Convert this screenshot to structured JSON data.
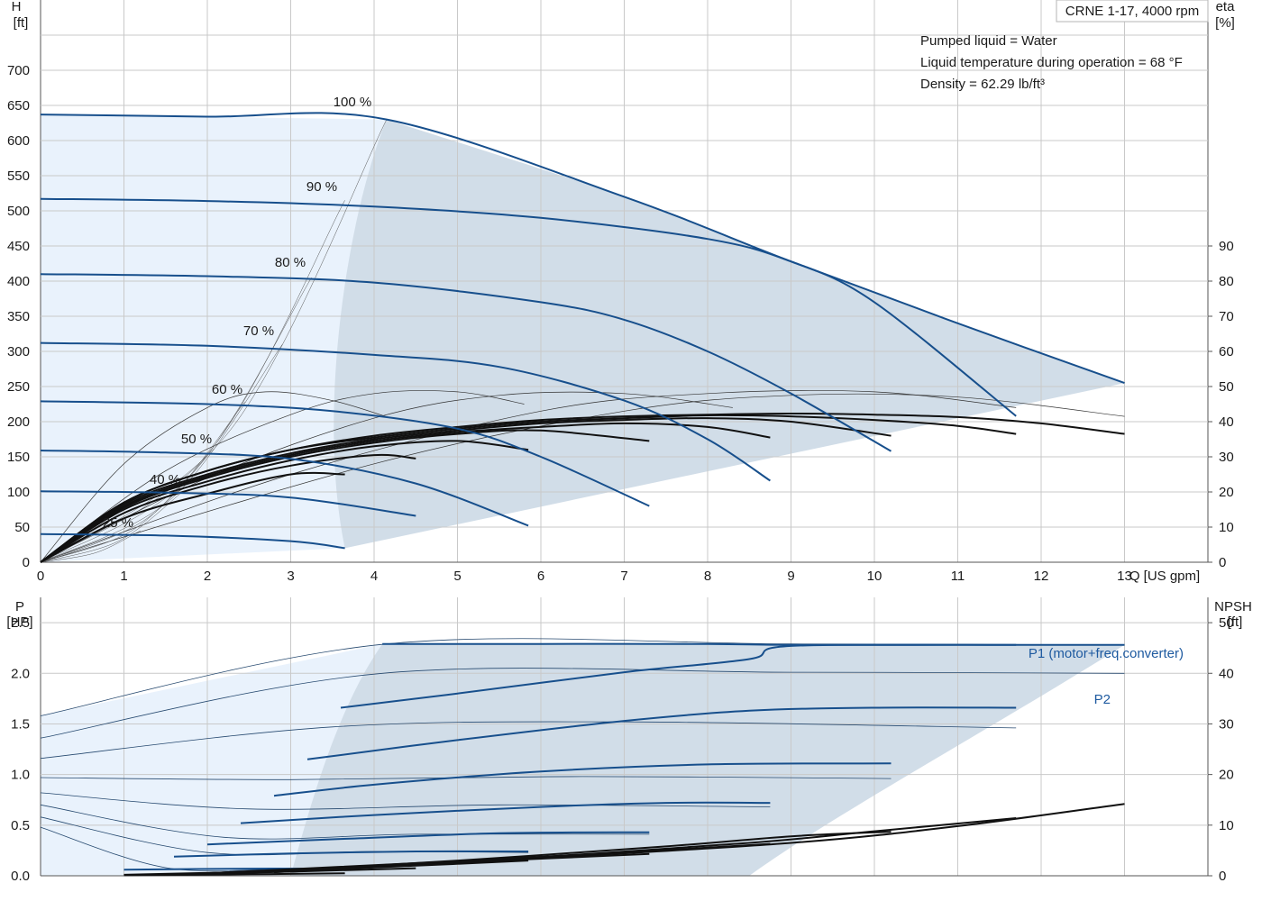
{
  "colors": {
    "curve": "#174f8c",
    "area_light": "#e9f2fc",
    "area_dark": "#d1dde8",
    "grid": "#c9c9c9",
    "black": "#111111",
    "label_blue": "#1e5aa0"
  },
  "info": {
    "pump": "CRNE 1-17, 4000 rpm",
    "liquid": "Pumped liquid = Water",
    "temperature": "Liquid temperature during operation = 68 °F",
    "density": "Density = 62.29 lb/ft³"
  },
  "chart_data": [
    {
      "type": "line",
      "name": "head-efficiency",
      "xlabel": "Q [US gpm]",
      "ylabel_left": [
        "H",
        "[ft]"
      ],
      "ylabel_right": [
        "eta",
        "[%]"
      ],
      "xlim": [
        0,
        14
      ],
      "ylim_left": [
        0,
        800
      ],
      "ylim_right": [
        0,
        160
      ],
      "xticks": [
        0,
        1,
        2,
        3,
        4,
        5,
        6,
        7,
        8,
        9,
        10,
        11,
        12,
        13
      ],
      "yticks_left": [
        0,
        50,
        100,
        150,
        200,
        250,
        300,
        350,
        400,
        450,
        500,
        550,
        600,
        650,
        700
      ],
      "yticks_right": [
        0,
        10,
        20,
        30,
        40,
        50,
        60,
        70,
        80,
        90
      ],
      "grid": true,
      "speed_labels": [
        "100 %",
        "90 %",
        "80 %",
        "70 %",
        "60 %",
        "50 %",
        "40 %",
        "25 %"
      ],
      "head_curves": [
        {
          "speed": "100 %",
          "x": [
            0,
            2,
            4.15,
            7,
            9,
            11,
            13
          ],
          "y": [
            637,
            634,
            630,
            520,
            428,
            340,
            255
          ]
        },
        {
          "speed": "90 %",
          "x": [
            0,
            2,
            4,
            6,
            8,
            9,
            10,
            11.7
          ],
          "y": [
            517,
            514,
            506,
            490,
            460,
            428,
            370,
            208
          ]
        },
        {
          "speed": "80 %",
          "x": [
            0,
            2,
            4,
            6,
            7,
            8,
            9,
            10.2
          ],
          "y": [
            410,
            407,
            398,
            370,
            345,
            300,
            240,
            158
          ]
        },
        {
          "speed": "70 %",
          "x": [
            0,
            2,
            4,
            5.5,
            7,
            8,
            8.75
          ],
          "y": [
            312,
            308,
            295,
            278,
            230,
            175,
            116
          ]
        },
        {
          "speed": "60 %",
          "x": [
            0,
            2,
            3.5,
            5,
            6,
            7.3
          ],
          "y": [
            229,
            225,
            215,
            190,
            150,
            80
          ]
        },
        {
          "speed": "50 %",
          "x": [
            0,
            1.5,
            3,
            4.5,
            5.85
          ],
          "y": [
            159,
            156,
            147,
            112,
            52
          ]
        },
        {
          "speed": "40 %",
          "x": [
            0,
            1.5,
            3,
            4.5
          ],
          "y": [
            101,
            99,
            92,
            66
          ]
        },
        {
          "speed": "25 %",
          "x": [
            0,
            1.5,
            3,
            3.65
          ],
          "y": [
            40,
            38,
            30,
            20
          ]
        }
      ],
      "efficiency_curves": [
        {
          "speed": "100 %",
          "x": [
            0,
            1,
            2,
            3,
            4,
            5,
            6,
            7,
            8,
            9,
            10,
            11,
            12,
            13
          ],
          "y": [
            0,
            17,
            26,
            32,
            36,
            38.5,
            40.5,
            41.5,
            42,
            42.3,
            42,
            41.3,
            39.5,
            36.5
          ]
        },
        {
          "speed": "90 %",
          "x": [
            0,
            1,
            2,
            3,
            4,
            5,
            6,
            7,
            8,
            9,
            10,
            11,
            11.7
          ],
          "y": [
            0,
            17,
            26,
            32,
            35.5,
            38,
            40,
            41,
            41.8,
            41.5,
            40.5,
            38.8,
            36.5
          ]
        },
        {
          "speed": "80 %",
          "x": [
            0,
            1,
            2,
            3,
            4,
            5,
            6,
            7,
            8,
            9,
            10.2
          ],
          "y": [
            0,
            16.5,
            25,
            31,
            35,
            37.5,
            39.5,
            40.5,
            41,
            40,
            36
          ]
        },
        {
          "speed": "70 %",
          "x": [
            0,
            1,
            2,
            3,
            4,
            5,
            6,
            7,
            8,
            8.75
          ],
          "y": [
            0,
            16,
            24.5,
            30.5,
            34.5,
            37,
            38.5,
            39.5,
            38.5,
            35.5
          ]
        },
        {
          "speed": "60 %",
          "x": [
            0,
            1,
            2,
            3,
            4,
            5,
            6,
            7.3
          ],
          "y": [
            0,
            15.5,
            24,
            30,
            34,
            36.5,
            37.5,
            34.5
          ]
        },
        {
          "speed": "50 %",
          "x": [
            0,
            1,
            2,
            3,
            4,
            5,
            5.85
          ],
          "y": [
            0,
            15,
            23,
            29,
            33,
            34.5,
            32
          ]
        },
        {
          "speed": "40 %",
          "x": [
            0,
            1,
            2,
            3,
            4,
            4.5
          ],
          "y": [
            0,
            14,
            22,
            27.5,
            30.5,
            29.5
          ]
        },
        {
          "speed": "25 %",
          "x": [
            0,
            1,
            2,
            3,
            3.65
          ],
          "y": [
            0,
            12.5,
            19.5,
            25,
            25
          ]
        }
      ]
    },
    {
      "type": "line",
      "name": "power-npsh",
      "ylabel_left": [
        "P",
        "[HP]"
      ],
      "ylabel_right": [
        "NPSH",
        "[ft]"
      ],
      "xlim": [
        0,
        14
      ],
      "ylim_left": [
        0,
        2.75
      ],
      "ylim_right": [
        0,
        55
      ],
      "xticks": [
        0,
        1,
        2,
        3,
        4,
        5,
        6,
        7,
        8,
        9,
        10,
        11,
        12,
        13
      ],
      "yticks_left": [
        "0.0",
        "0.5",
        "1.0",
        "1.5",
        "2.0",
        "2.5"
      ],
      "yticks_right": [
        0,
        10,
        20,
        30,
        40,
        50
      ],
      "grid": true,
      "series_labels": [
        "P1 (motor+freq.converter)",
        "P2"
      ],
      "p1_curves": [
        {
          "speed": "100 %",
          "x": [
            4.1,
            6,
            8,
            9,
            11,
            13
          ],
          "y": [
            2.29,
            2.29,
            2.29,
            2.28,
            2.28,
            2.28
          ]
        },
        {
          "speed": "90 %",
          "x": [
            3.6,
            5,
            7,
            8.5,
            9,
            11.7
          ],
          "y": [
            1.66,
            1.8,
            2.01,
            2.14,
            2.27,
            2.28
          ]
        },
        {
          "speed": "80 %",
          "x": [
            3.2,
            5,
            7,
            8.5,
            10,
            11.7
          ],
          "y": [
            1.15,
            1.34,
            1.53,
            1.63,
            1.66,
            1.66
          ]
        },
        {
          "speed": "70 %",
          "x": [
            2.8,
            4,
            6,
            8,
            10.2
          ],
          "y": [
            0.79,
            0.9,
            1.03,
            1.1,
            1.11
          ]
        },
        {
          "speed": "60 %",
          "x": [
            2.4,
            4,
            6,
            7.5,
            8.75
          ],
          "y": [
            0.52,
            0.6,
            0.68,
            0.72,
            0.72
          ]
        },
        {
          "speed": "50 %",
          "x": [
            2,
            3.5,
            5.5,
            7.3
          ],
          "y": [
            0.31,
            0.36,
            0.42,
            0.43
          ]
        },
        {
          "speed": "40 %",
          "x": [
            1.6,
            3,
            4.5,
            5.85
          ],
          "y": [
            0.19,
            0.22,
            0.24,
            0.24
          ]
        },
        {
          "speed": "25 %",
          "x": [
            1,
            2.5,
            3.65
          ],
          "y": [
            0.06,
            0.07,
            0.07
          ]
        }
      ],
      "p2_curves": [
        {
          "speed": "100 %",
          "x": [
            0,
            4.15,
            9,
            13
          ],
          "y": [
            1.58,
            2.29,
            2.29,
            2.28
          ]
        },
        {
          "speed": "90 %",
          "x": [
            0,
            4.1,
            9,
            13
          ],
          "y": [
            1.36,
            2.0,
            2.01,
            2.0
          ]
        },
        {
          "speed": "80 %",
          "x": [
            0,
            3.5,
            7,
            11.7
          ],
          "y": [
            1.16,
            1.47,
            1.52,
            1.46
          ]
        },
        {
          "speed": "70 %",
          "x": [
            0,
            3,
            6.5,
            10.2
          ],
          "y": [
            0.97,
            0.95,
            0.98,
            0.96
          ]
        },
        {
          "speed": "60 %",
          "x": [
            0,
            2.5,
            5.5,
            8.75
          ],
          "y": [
            0.82,
            0.66,
            0.7,
            0.68
          ]
        },
        {
          "speed": "50 %",
          "x": [
            0,
            2.2,
            4.5,
            7.3
          ],
          "y": [
            0.7,
            0.38,
            0.41,
            0.41
          ]
        },
        {
          "speed": "40 %",
          "x": [
            0,
            2,
            4,
            5.85
          ],
          "y": [
            0.58,
            0.23,
            0.24,
            0.23
          ]
        },
        {
          "speed": "25 %",
          "x": [
            0,
            1.5,
            3,
            3.65
          ],
          "y": [
            0.48,
            0.08,
            0.07,
            0.07
          ]
        }
      ],
      "npsh_curves": [
        {
          "speed": "100 %",
          "x": [
            3,
            6,
            9,
            11,
            13
          ],
          "y": [
            0.8,
            3.5,
            6.5,
            9.8,
            14.2
          ]
        },
        {
          "speed": "90 %",
          "x": [
            2.8,
            5.5,
            8.5,
            10,
            11.7
          ],
          "y": [
            0.7,
            3.2,
            6.5,
            8.8,
            11.4
          ]
        },
        {
          "speed": "80 %",
          "x": [
            2.5,
            5,
            7.5,
            9,
            10.2
          ],
          "y": [
            0.6,
            3.0,
            5.8,
            7.8,
            8.7
          ]
        },
        {
          "speed": "70 %",
          "x": [
            2,
            4.5,
            7,
            8.75
          ],
          "y": [
            0.5,
            2.5,
            4.6,
            6.3
          ]
        },
        {
          "speed": "60 %",
          "x": [
            1.5,
            3.5,
            5.5,
            7.3
          ],
          "y": [
            0.2,
            1.5,
            3.0,
            4.3
          ]
        },
        {
          "speed": "50 %",
          "x": [
            1,
            3,
            4.5,
            5.85
          ],
          "y": [
            0.2,
            1.0,
            2.0,
            3.0
          ]
        },
        {
          "speed": "40 %",
          "x": [
            1,
            2.5,
            4.5
          ],
          "y": [
            0.1,
            0.6,
            1.5
          ]
        },
        {
          "speed": "25 %",
          "x": [
            1,
            2.5,
            3.65
          ],
          "y": [
            0.1,
            0.3,
            0.5
          ]
        }
      ]
    }
  ]
}
